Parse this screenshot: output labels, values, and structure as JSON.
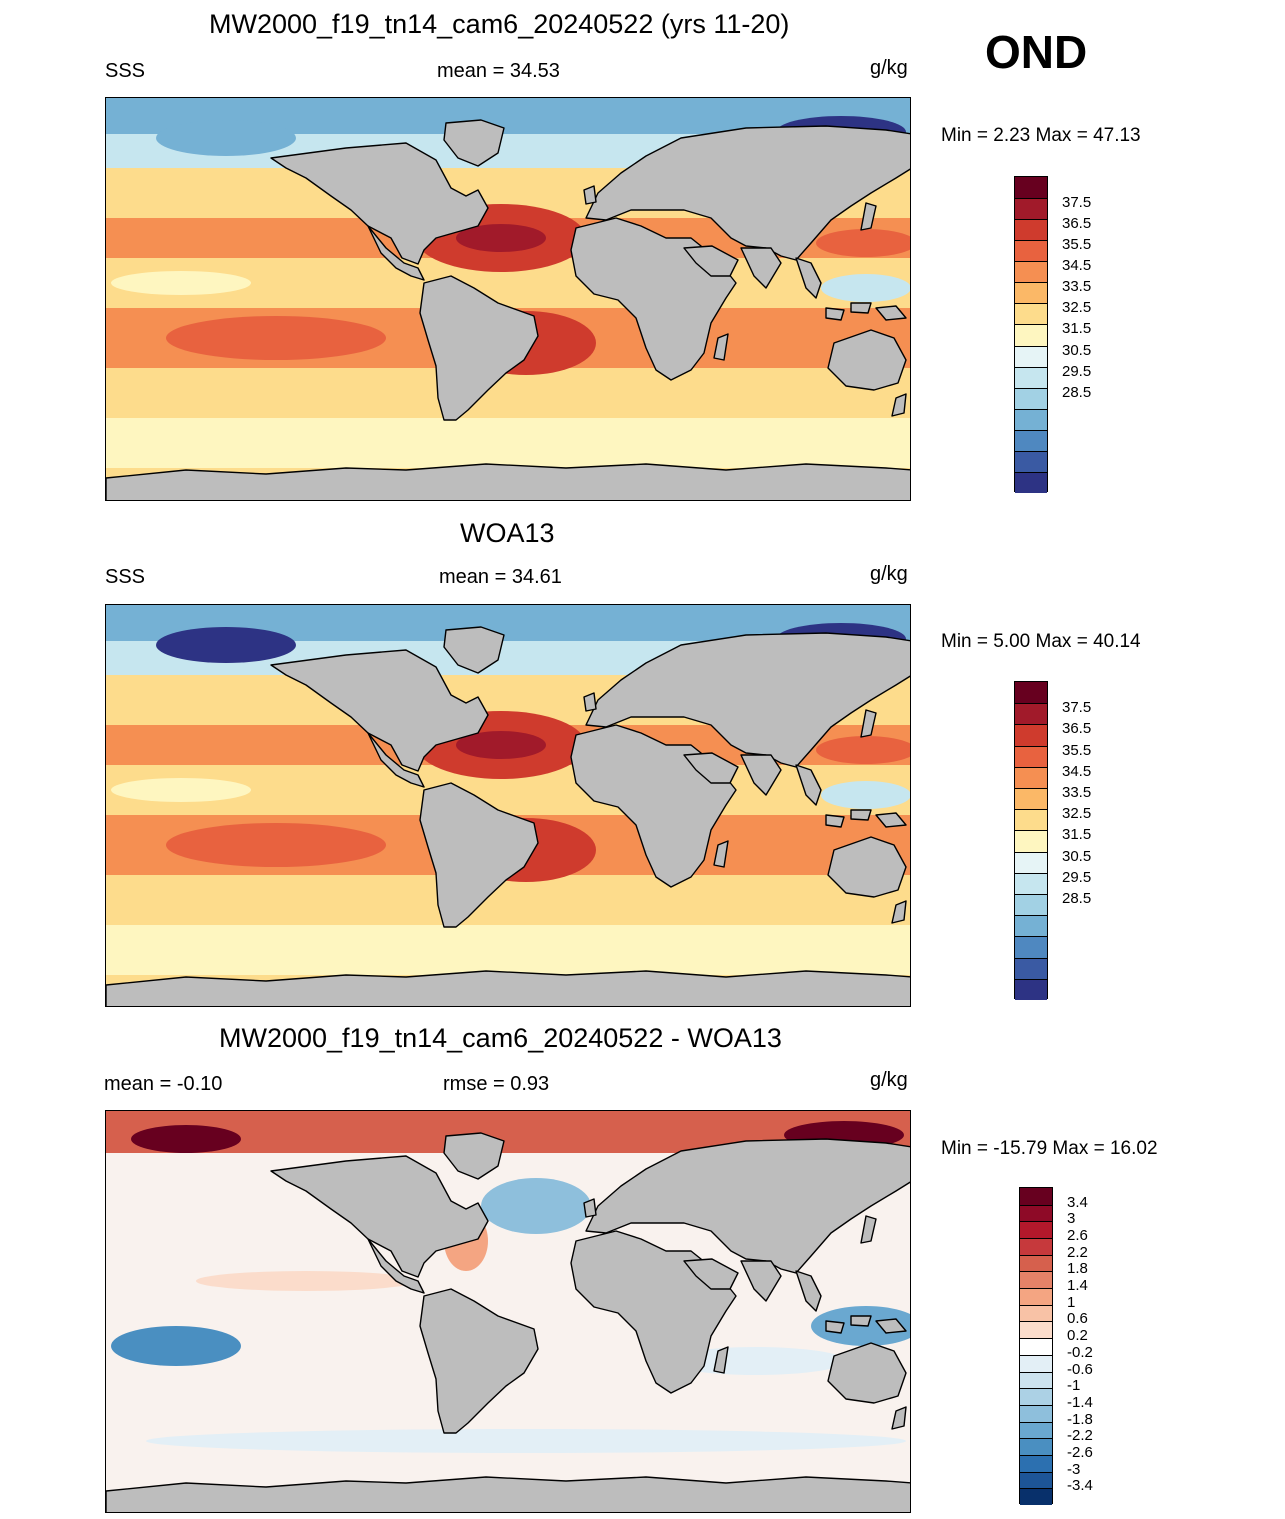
{
  "season": "OND",
  "panels": [
    {
      "id": "model",
      "title": "MW2000_f19_tn14_cam6_20240522 (yrs 11-20)",
      "left_label": "SSS",
      "center_label": "mean =  34.53",
      "units": "g/kg",
      "minmax": "Min =   2.23 Max =  47.13",
      "palette": "salinity",
      "colorbar": {
        "labels": [
          "37.5",
          "36.5",
          "35.5",
          "34.5",
          "33.5",
          "32.5",
          "31.5",
          "30.5",
          "29.5",
          "28.5"
        ],
        "colors": [
          "#67001f",
          "#a11a2a",
          "#cf3b2d",
          "#e8623f",
          "#f58f52",
          "#fbb867",
          "#fddc8c",
          "#fef6c0",
          "#e6f4f6",
          "#c6e6ef",
          "#a2d1e4",
          "#75b1d4",
          "#4f88c0",
          "#3a5aa3",
          "#2d3384"
        ]
      }
    },
    {
      "id": "obs",
      "title": "WOA13",
      "left_label": "SSS",
      "center_label": "mean =  34.61",
      "units": "g/kg",
      "minmax": "Min =   5.00 Max =  40.14",
      "palette": "salinity",
      "colorbar": {
        "labels": [
          "37.5",
          "36.5",
          "35.5",
          "34.5",
          "33.5",
          "32.5",
          "31.5",
          "30.5",
          "29.5",
          "28.5"
        ],
        "colors": [
          "#67001f",
          "#a11a2a",
          "#cf3b2d",
          "#e8623f",
          "#f58f52",
          "#fbb867",
          "#fddc8c",
          "#fef6c0",
          "#e6f4f6",
          "#c6e6ef",
          "#a2d1e4",
          "#75b1d4",
          "#4f88c0",
          "#3a5aa3",
          "#2d3384"
        ]
      }
    },
    {
      "id": "diff",
      "title": "MW2000_f19_tn14_cam6_20240522 - WOA13",
      "left_label": "mean =  -0.10",
      "center_label": "rmse =   0.93",
      "units": "g/kg",
      "minmax": "Min = -15.79 Max =  16.02",
      "palette": "difference",
      "colorbar": {
        "labels": [
          "3.4",
          "3",
          "2.6",
          "2.2",
          "1.8",
          "1.4",
          "1",
          "0.6",
          "0.2",
          "-0.2",
          "-0.6",
          "-1",
          "-1.4",
          "-1.8",
          "-2.2",
          "-2.6",
          "-3",
          "-3.4"
        ],
        "colors": [
          "#67001f",
          "#8e0a27",
          "#b2182b",
          "#c6393c",
          "#d6604d",
          "#e58268",
          "#f4a582",
          "#f8c2a6",
          "#fbdccb",
          "#ffffff",
          "#e3eff6",
          "#cce2ee",
          "#acd1e5",
          "#8ebfdc",
          "#6aa8d0",
          "#4a8fc1",
          "#2c70b0",
          "#1d5597",
          "#08306b"
        ]
      }
    }
  ]
}
